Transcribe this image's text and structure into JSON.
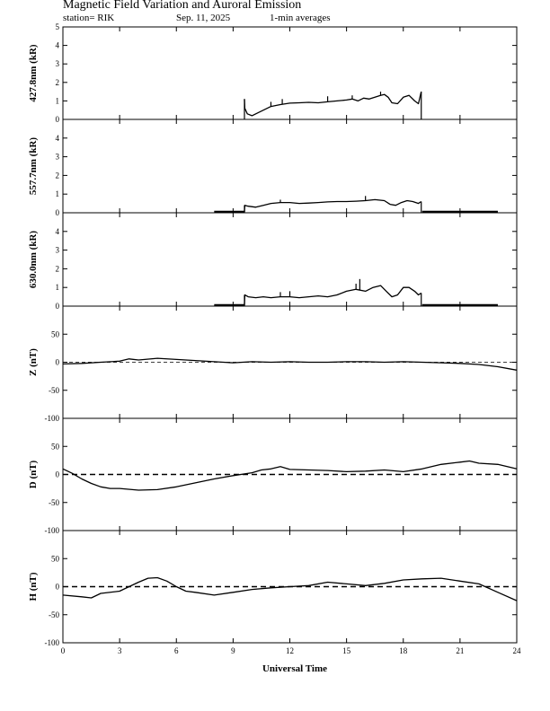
{
  "header": {
    "title": "Magnetic Field Variation and Auroral Emission",
    "station": "station= RIK",
    "date": "Sep. 11, 2025",
    "averaging": "1-min averages"
  },
  "colors": {
    "line": "#000000",
    "background": "#ffffff"
  },
  "chart_data": [
    {
      "type": "line",
      "id": "p4278",
      "ylabel": "427.8nm (kR)",
      "ylim": [
        0,
        5
      ],
      "yticks": [
        0,
        1,
        2,
        3,
        4,
        5
      ],
      "zero_line": "none",
      "baseline_segments": [],
      "x": [
        9.6,
        9.62,
        9.75,
        10.0,
        10.3,
        10.7,
        11.0,
        11.5,
        12.0,
        12.5,
        13.0,
        13.5,
        14.0,
        14.5,
        15.0,
        15.3,
        15.6,
        15.9,
        16.2,
        16.5,
        16.8,
        17.0,
        17.2,
        17.4,
        17.7,
        18.0,
        18.3,
        18.6,
        18.8,
        18.95
      ],
      "y": [
        1.1,
        0.6,
        0.3,
        0.2,
        0.35,
        0.55,
        0.7,
        0.8,
        0.88,
        0.9,
        0.92,
        0.9,
        0.95,
        1.0,
        1.05,
        1.1,
        1.0,
        1.15,
        1.1,
        1.2,
        1.3,
        1.35,
        1.2,
        0.9,
        0.85,
        1.2,
        1.3,
        1.0,
        0.85,
        1.5
      ],
      "spikes": [
        [
          11.0,
          0.95
        ],
        [
          11.6,
          1.1
        ],
        [
          14.0,
          1.25
        ],
        [
          15.3,
          1.3
        ],
        [
          16.8,
          1.5
        ]
      ]
    },
    {
      "type": "line",
      "id": "p5577",
      "ylabel": "557.7nm (kR)",
      "ylim": [
        0,
        5
      ],
      "yticks": [
        0,
        1,
        2,
        3,
        4
      ],
      "zero_line": "none",
      "baseline_segments": [
        [
          8.0,
          9.6
        ],
        [
          19.0,
          23.0
        ]
      ],
      "x": [
        9.6,
        9.62,
        9.8,
        10.2,
        10.6,
        11.0,
        11.5,
        12.0,
        12.5,
        13.0,
        13.5,
        14.0,
        14.5,
        15.0,
        15.5,
        16.0,
        16.5,
        17.0,
        17.3,
        17.6,
        17.9,
        18.2,
        18.5,
        18.8,
        18.95
      ],
      "y": [
        0.05,
        0.4,
        0.35,
        0.3,
        0.4,
        0.5,
        0.55,
        0.55,
        0.5,
        0.52,
        0.55,
        0.58,
        0.6,
        0.6,
        0.62,
        0.65,
        0.7,
        0.65,
        0.45,
        0.4,
        0.55,
        0.65,
        0.6,
        0.5,
        0.6
      ],
      "spikes": [
        [
          11.5,
          0.7
        ],
        [
          16.0,
          0.9
        ]
      ]
    },
    {
      "type": "line",
      "id": "p6300",
      "ylabel": "630.0nm (kR)",
      "ylim": [
        0,
        5
      ],
      "yticks": [
        0,
        1,
        2,
        3,
        4
      ],
      "zero_line": "none",
      "baseline_segments": [
        [
          8.0,
          9.6
        ],
        [
          19.0,
          23.0
        ]
      ],
      "x": [
        9.6,
        9.62,
        9.8,
        10.2,
        10.6,
        11.0,
        11.5,
        12.0,
        12.5,
        13.0,
        13.5,
        14.0,
        14.5,
        15.0,
        15.5,
        16.0,
        16.4,
        16.8,
        17.1,
        17.4,
        17.7,
        18.0,
        18.3,
        18.6,
        18.8,
        18.95
      ],
      "y": [
        0.05,
        0.6,
        0.5,
        0.45,
        0.5,
        0.45,
        0.5,
        0.5,
        0.45,
        0.5,
        0.55,
        0.5,
        0.6,
        0.8,
        0.9,
        0.8,
        1.0,
        1.1,
        0.8,
        0.5,
        0.6,
        1.0,
        1.0,
        0.8,
        0.6,
        0.7
      ],
      "spikes": [
        [
          11.5,
          0.75
        ],
        [
          12.0,
          0.8
        ],
        [
          15.5,
          1.2
        ],
        [
          15.7,
          1.45
        ]
      ]
    },
    {
      "type": "line",
      "id": "pZ",
      "ylabel": "Z (nT)",
      "ylim": [
        -100,
        100
      ],
      "yticks": [
        -100,
        -50,
        0,
        50
      ],
      "zero_line": "fine",
      "baseline_segments": [],
      "x": [
        0,
        1,
        2,
        3,
        3.5,
        4,
        5,
        6,
        7,
        8,
        9,
        10,
        11,
        12,
        13,
        14,
        15,
        16,
        17,
        18,
        19,
        20,
        21,
        22,
        23,
        24
      ],
      "y": [
        -3,
        -2,
        0,
        2,
        6,
        4,
        7,
        5,
        3,
        1,
        -1,
        1,
        0,
        1,
        0,
        0,
        1,
        1,
        0,
        1,
        0,
        -1,
        -2,
        -4,
        -8,
        -14
      ],
      "spikes": []
    },
    {
      "type": "line",
      "id": "pD",
      "ylabel": "D (nT)",
      "ylim": [
        -100,
        100
      ],
      "yticks": [
        -100,
        -50,
        0,
        50
      ],
      "zero_line": "dashed",
      "baseline_segments": [],
      "x": [
        0,
        0.5,
        1,
        1.5,
        2,
        2.5,
        3,
        4,
        5,
        6,
        7,
        8,
        9,
        10,
        10.5,
        11,
        11.5,
        12,
        13,
        14,
        15,
        16,
        17,
        18,
        19,
        20,
        21,
        21.5,
        22,
        23,
        24
      ],
      "y": [
        10,
        2,
        -8,
        -16,
        -22,
        -25,
        -25,
        -28,
        -27,
        -22,
        -15,
        -8,
        -2,
        3,
        8,
        10,
        14,
        9,
        8,
        7,
        5,
        6,
        8,
        5,
        10,
        18,
        22,
        24,
        20,
        18,
        10
      ],
      "spikes": []
    },
    {
      "type": "line",
      "id": "pH",
      "ylabel": "H (nT)",
      "ylim": [
        -100,
        100
      ],
      "yticks": [
        -100,
        -50,
        0,
        50
      ],
      "zero_line": "dashed",
      "baseline_segments": [],
      "x": [
        0,
        1,
        1.5,
        2,
        3,
        3.5,
        4,
        4.5,
        5,
        5.5,
        6,
        6.5,
        7,
        8,
        9,
        10,
        11,
        12,
        13,
        14,
        15,
        16,
        17,
        18,
        19,
        20,
        21,
        22,
        23,
        24
      ],
      "y": [
        -15,
        -18,
        -20,
        -12,
        -8,
        0,
        8,
        15,
        16,
        10,
        0,
        -8,
        -10,
        -15,
        -10,
        -5,
        -2,
        0,
        2,
        8,
        5,
        2,
        6,
        12,
        14,
        15,
        10,
        5,
        -10,
        -25
      ],
      "spikes": []
    }
  ],
  "x_axis": {
    "label": "Universal Time",
    "xlim": [
      0,
      24
    ],
    "ticks": [
      0,
      3,
      6,
      9,
      12,
      15,
      18,
      21,
      24
    ]
  }
}
